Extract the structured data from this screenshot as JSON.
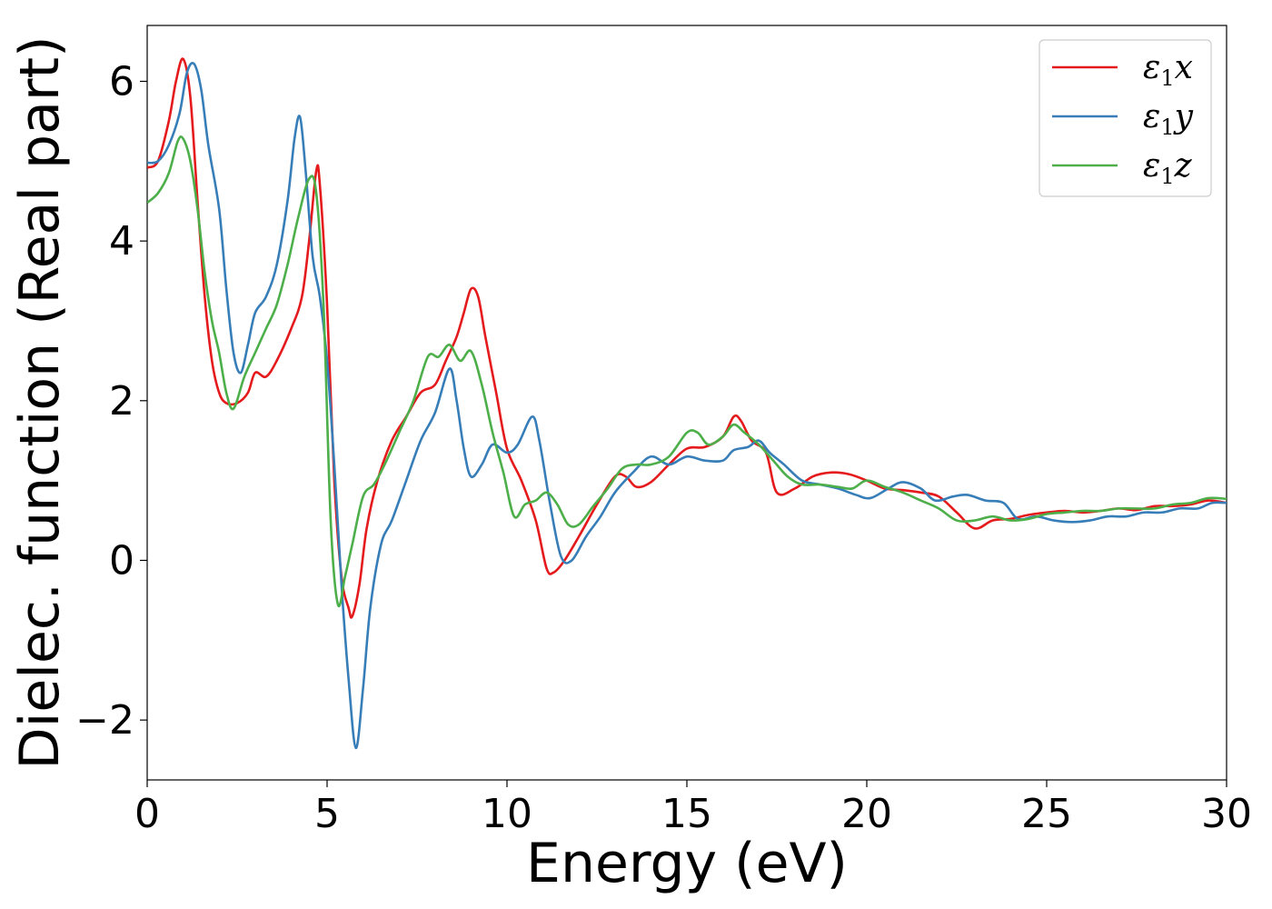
{
  "chart_data": {
    "type": "line",
    "xlabel": "Energy (eV)",
    "ylabel": "Dielec. function (Real part)",
    "xlim": [
      0,
      30
    ],
    "ylim": [
      -2.75,
      6.7
    ],
    "xticks": [
      0,
      5,
      10,
      15,
      20,
      25,
      30
    ],
    "yticks": [
      -2,
      0,
      2,
      4,
      6
    ],
    "xtick_labels": [
      "0",
      "5",
      "10",
      "15",
      "20",
      "25",
      "30"
    ],
    "ytick_labels": [
      "−2",
      "0",
      "2",
      "4",
      "6"
    ],
    "grid": false,
    "legend_position": "top-right",
    "series": [
      {
        "name": "ε₁x",
        "legend": {
          "symbol": "ε",
          "sub": "1",
          "axis": "x"
        },
        "color": "#e41a1c",
        "points": [
          [
            0,
            4.92
          ],
          [
            0.3,
            5.0
          ],
          [
            0.6,
            5.5
          ],
          [
            0.8,
            6.0
          ],
          [
            1.0,
            6.28
          ],
          [
            1.2,
            5.8
          ],
          [
            1.4,
            4.5
          ],
          [
            1.6,
            3.3
          ],
          [
            1.8,
            2.5
          ],
          [
            2.0,
            2.1
          ],
          [
            2.2,
            1.97
          ],
          [
            2.5,
            1.97
          ],
          [
            2.8,
            2.1
          ],
          [
            3.0,
            2.35
          ],
          [
            3.3,
            2.3
          ],
          [
            3.6,
            2.5
          ],
          [
            4.0,
            2.9
          ],
          [
            4.3,
            3.3
          ],
          [
            4.5,
            4.0
          ],
          [
            4.7,
            4.88
          ],
          [
            4.8,
            4.7
          ],
          [
            5.0,
            3.2
          ],
          [
            5.2,
            1.0
          ],
          [
            5.4,
            -0.2
          ],
          [
            5.6,
            -0.6
          ],
          [
            5.7,
            -0.7
          ],
          [
            5.9,
            -0.3
          ],
          [
            6.1,
            0.4
          ],
          [
            6.4,
            1.0
          ],
          [
            6.8,
            1.5
          ],
          [
            7.2,
            1.8
          ],
          [
            7.6,
            2.1
          ],
          [
            8.0,
            2.2
          ],
          [
            8.3,
            2.5
          ],
          [
            8.6,
            2.8
          ],
          [
            8.8,
            3.1
          ],
          [
            9.0,
            3.4
          ],
          [
            9.2,
            3.3
          ],
          [
            9.4,
            2.8
          ],
          [
            9.7,
            2.1
          ],
          [
            10.0,
            1.4
          ],
          [
            10.4,
            1.0
          ],
          [
            10.8,
            0.5
          ],
          [
            11.1,
            -0.1
          ],
          [
            11.3,
            -0.15
          ],
          [
            11.6,
            0.0
          ],
          [
            12.0,
            0.3
          ],
          [
            12.5,
            0.7
          ],
          [
            13.0,
            1.05
          ],
          [
            13.3,
            1.05
          ],
          [
            13.6,
            0.92
          ],
          [
            14.0,
            0.98
          ],
          [
            14.5,
            1.2
          ],
          [
            15.0,
            1.4
          ],
          [
            15.5,
            1.42
          ],
          [
            16.0,
            1.55
          ],
          [
            16.3,
            1.8
          ],
          [
            16.5,
            1.75
          ],
          [
            16.8,
            1.5
          ],
          [
            17.2,
            1.35
          ],
          [
            17.5,
            0.85
          ],
          [
            18.0,
            0.9
          ],
          [
            18.5,
            1.05
          ],
          [
            19.0,
            1.1
          ],
          [
            19.5,
            1.08
          ],
          [
            20.0,
            1.0
          ],
          [
            20.5,
            0.9
          ],
          [
            21.0,
            0.88
          ],
          [
            21.5,
            0.85
          ],
          [
            22.0,
            0.8
          ],
          [
            22.5,
            0.6
          ],
          [
            23.0,
            0.4
          ],
          [
            23.5,
            0.5
          ],
          [
            24.0,
            0.52
          ],
          [
            24.5,
            0.57
          ],
          [
            25.0,
            0.6
          ],
          [
            25.5,
            0.62
          ],
          [
            26.0,
            0.6
          ],
          [
            26.5,
            0.62
          ],
          [
            27.0,
            0.65
          ],
          [
            27.5,
            0.63
          ],
          [
            28.0,
            0.68
          ],
          [
            28.5,
            0.68
          ],
          [
            29.0,
            0.7
          ],
          [
            29.5,
            0.75
          ],
          [
            30.0,
            0.72
          ]
        ]
      },
      {
        "name": "ε₁y",
        "legend": {
          "symbol": "ε",
          "sub": "1",
          "axis": "y"
        },
        "color": "#377eb8",
        "points": [
          [
            0,
            4.98
          ],
          [
            0.3,
            5.0
          ],
          [
            0.6,
            5.2
          ],
          [
            0.9,
            5.6
          ],
          [
            1.1,
            6.1
          ],
          [
            1.3,
            6.22
          ],
          [
            1.5,
            5.9
          ],
          [
            1.7,
            5.2
          ],
          [
            2.0,
            4.4
          ],
          [
            2.2,
            3.4
          ],
          [
            2.4,
            2.6
          ],
          [
            2.6,
            2.35
          ],
          [
            2.8,
            2.7
          ],
          [
            3.0,
            3.1
          ],
          [
            3.3,
            3.3
          ],
          [
            3.6,
            3.7
          ],
          [
            3.9,
            4.5
          ],
          [
            4.1,
            5.3
          ],
          [
            4.25,
            5.55
          ],
          [
            4.4,
            4.9
          ],
          [
            4.6,
            3.8
          ],
          [
            4.8,
            3.3
          ],
          [
            5.0,
            2.5
          ],
          [
            5.2,
            1.2
          ],
          [
            5.4,
            -0.3
          ],
          [
            5.6,
            -1.5
          ],
          [
            5.8,
            -2.35
          ],
          [
            6.0,
            -1.6
          ],
          [
            6.2,
            -0.6
          ],
          [
            6.5,
            0.2
          ],
          [
            6.8,
            0.5
          ],
          [
            7.2,
            1.0
          ],
          [
            7.6,
            1.5
          ],
          [
            8.0,
            1.85
          ],
          [
            8.4,
            2.4
          ],
          [
            8.6,
            2.0
          ],
          [
            8.8,
            1.4
          ],
          [
            9.0,
            1.05
          ],
          [
            9.3,
            1.2
          ],
          [
            9.6,
            1.45
          ],
          [
            10.0,
            1.35
          ],
          [
            10.3,
            1.45
          ],
          [
            10.7,
            1.8
          ],
          [
            10.9,
            1.5
          ],
          [
            11.2,
            0.7
          ],
          [
            11.5,
            0.05
          ],
          [
            11.8,
            0.0
          ],
          [
            12.2,
            0.3
          ],
          [
            12.6,
            0.55
          ],
          [
            13.0,
            0.85
          ],
          [
            13.5,
            1.1
          ],
          [
            14.0,
            1.3
          ],
          [
            14.5,
            1.2
          ],
          [
            15.0,
            1.3
          ],
          [
            15.5,
            1.25
          ],
          [
            16.0,
            1.25
          ],
          [
            16.3,
            1.38
          ],
          [
            16.7,
            1.42
          ],
          [
            17.0,
            1.5
          ],
          [
            17.3,
            1.35
          ],
          [
            17.7,
            1.2
          ],
          [
            18.2,
            1.0
          ],
          [
            18.7,
            0.95
          ],
          [
            19.2,
            0.9
          ],
          [
            19.7,
            0.82
          ],
          [
            20.1,
            0.78
          ],
          [
            20.6,
            0.9
          ],
          [
            21.0,
            0.98
          ],
          [
            21.5,
            0.9
          ],
          [
            21.9,
            0.75
          ],
          [
            22.4,
            0.8
          ],
          [
            22.8,
            0.82
          ],
          [
            23.3,
            0.75
          ],
          [
            23.8,
            0.72
          ],
          [
            24.2,
            0.52
          ],
          [
            24.7,
            0.55
          ],
          [
            25.2,
            0.5
          ],
          [
            25.7,
            0.48
          ],
          [
            26.2,
            0.5
          ],
          [
            26.7,
            0.55
          ],
          [
            27.2,
            0.55
          ],
          [
            27.7,
            0.6
          ],
          [
            28.2,
            0.6
          ],
          [
            28.7,
            0.65
          ],
          [
            29.2,
            0.65
          ],
          [
            29.6,
            0.72
          ],
          [
            30.0,
            0.72
          ]
        ]
      },
      {
        "name": "ε₁z",
        "legend": {
          "symbol": "ε",
          "sub": "1",
          "axis": "z"
        },
        "color": "#4daf4a",
        "points": [
          [
            0,
            4.48
          ],
          [
            0.3,
            4.6
          ],
          [
            0.6,
            4.85
          ],
          [
            0.85,
            5.25
          ],
          [
            1.0,
            5.28
          ],
          [
            1.2,
            5.0
          ],
          [
            1.4,
            4.4
          ],
          [
            1.6,
            3.6
          ],
          [
            1.8,
            3.0
          ],
          [
            2.0,
            2.6
          ],
          [
            2.2,
            2.1
          ],
          [
            2.4,
            1.9
          ],
          [
            2.7,
            2.3
          ],
          [
            3.0,
            2.6
          ],
          [
            3.3,
            2.9
          ],
          [
            3.6,
            3.2
          ],
          [
            3.9,
            3.7
          ],
          [
            4.2,
            4.3
          ],
          [
            4.5,
            4.78
          ],
          [
            4.7,
            4.6
          ],
          [
            4.9,
            3.2
          ],
          [
            5.1,
            0.5
          ],
          [
            5.3,
            -0.55
          ],
          [
            5.5,
            -0.2
          ],
          [
            5.7,
            0.2
          ],
          [
            6.0,
            0.8
          ],
          [
            6.3,
            0.95
          ],
          [
            6.6,
            1.2
          ],
          [
            7.0,
            1.6
          ],
          [
            7.4,
            2.0
          ],
          [
            7.8,
            2.55
          ],
          [
            8.1,
            2.55
          ],
          [
            8.4,
            2.7
          ],
          [
            8.7,
            2.5
          ],
          [
            9.0,
            2.62
          ],
          [
            9.3,
            2.2
          ],
          [
            9.6,
            1.6
          ],
          [
            9.9,
            1.1
          ],
          [
            10.2,
            0.55
          ],
          [
            10.5,
            0.7
          ],
          [
            10.8,
            0.75
          ],
          [
            11.1,
            0.85
          ],
          [
            11.4,
            0.7
          ],
          [
            11.7,
            0.45
          ],
          [
            12.0,
            0.45
          ],
          [
            12.4,
            0.68
          ],
          [
            12.8,
            0.9
          ],
          [
            13.2,
            1.15
          ],
          [
            13.6,
            1.2
          ],
          [
            14.0,
            1.2
          ],
          [
            14.5,
            1.3
          ],
          [
            15.0,
            1.6
          ],
          [
            15.3,
            1.6
          ],
          [
            15.6,
            1.45
          ],
          [
            16.0,
            1.55
          ],
          [
            16.3,
            1.7
          ],
          [
            16.6,
            1.6
          ],
          [
            17.0,
            1.45
          ],
          [
            17.4,
            1.25
          ],
          [
            17.8,
            1.05
          ],
          [
            18.2,
            0.95
          ],
          [
            18.7,
            0.95
          ],
          [
            19.2,
            0.92
          ],
          [
            19.6,
            0.9
          ],
          [
            20.0,
            1.0
          ],
          [
            20.5,
            0.92
          ],
          [
            21.0,
            0.85
          ],
          [
            21.5,
            0.75
          ],
          [
            22.0,
            0.65
          ],
          [
            22.5,
            0.5
          ],
          [
            23.0,
            0.5
          ],
          [
            23.5,
            0.55
          ],
          [
            24.0,
            0.5
          ],
          [
            24.5,
            0.52
          ],
          [
            25.0,
            0.58
          ],
          [
            25.5,
            0.6
          ],
          [
            26.0,
            0.62
          ],
          [
            26.5,
            0.62
          ],
          [
            27.0,
            0.65
          ],
          [
            27.5,
            0.65
          ],
          [
            28.0,
            0.65
          ],
          [
            28.5,
            0.7
          ],
          [
            29.0,
            0.72
          ],
          [
            29.5,
            0.78
          ],
          [
            30.0,
            0.77
          ]
        ]
      }
    ]
  }
}
